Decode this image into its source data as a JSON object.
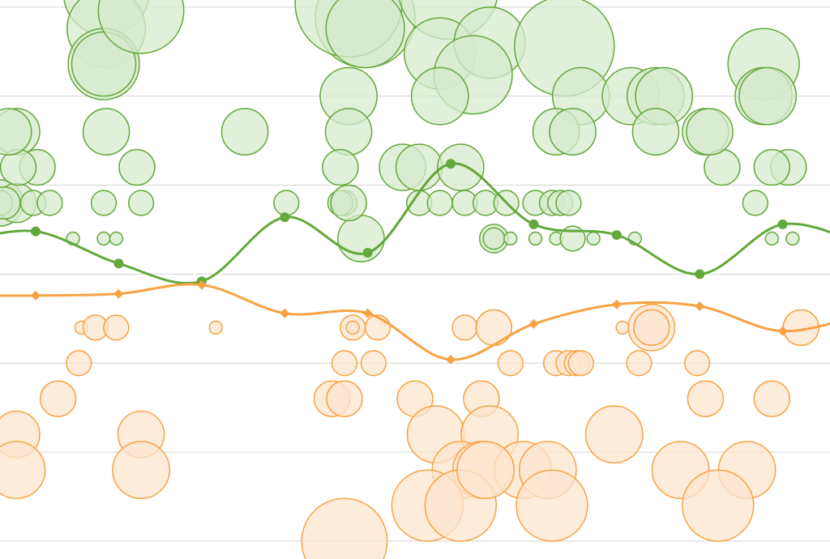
{
  "chart_data": {
    "type": "scatter",
    "title": "",
    "xlabel": "",
    "ylabel": "",
    "xlim": [
      0,
      10
    ],
    "ylim": [
      -14.5,
      1.2
    ],
    "grid": true,
    "grid_y": [
      1,
      -1.5,
      -4,
      -6.5,
      -9,
      -11.5,
      -14
    ],
    "series": [
      {
        "kind": "line",
        "color": "#63a83b",
        "marker": "circle",
        "x": [
          -0.5,
          0.43,
          1.43,
          2.43,
          3.43,
          4.43,
          5.43,
          6.43,
          7.43,
          8.43,
          9.43,
          10.43
        ],
        "y": [
          -5.6,
          -5.3,
          -6.2,
          -6.7,
          -4.9,
          -5.9,
          -3.4,
          -5.1,
          -5.4,
          -6.5,
          -5.1,
          -5.7
        ]
      },
      {
        "kind": "line",
        "color": "#f7a243",
        "marker": "diamond",
        "x": [
          -0.5,
          0.43,
          1.43,
          2.43,
          3.43,
          4.43,
          5.43,
          6.43,
          7.43,
          8.43,
          9.43,
          10.43
        ],
        "y": [
          -7.1,
          -7.1,
          -7.05,
          -6.8,
          -7.6,
          -7.6,
          -8.9,
          -7.9,
          -7.35,
          -7.4,
          -8.1,
          -7.6
        ]
      },
      {
        "kind": "bubbles",
        "color": "#63a83b",
        "fill": "#d6ebcc",
        "points": [
          [
            1.28,
            1.4,
            1.2
          ],
          [
            1.28,
            0.4,
            1.1
          ],
          [
            1.25,
            -0.6,
            1.0
          ],
          [
            1.25,
            -0.6,
            0.9
          ],
          [
            1.7,
            0.9,
            1.2
          ],
          [
            4.4,
            0.7,
            1.4
          ],
          [
            4.2,
            1.1,
            1.5
          ],
          [
            4.4,
            0.4,
            1.1
          ],
          [
            5.4,
            1.5,
            1.4
          ],
          [
            5.3,
            -0.3,
            1.0
          ],
          [
            5.9,
            0,
            1.0
          ],
          [
            5.7,
            -0.9,
            1.1
          ],
          [
            5.3,
            -1.5,
            0.8
          ],
          [
            6.8,
            -0.1,
            1.4
          ],
          [
            7.0,
            -1.5,
            0.8
          ],
          [
            6.7,
            -2.5,
            0.65
          ],
          [
            6.9,
            -2.5,
            0.65
          ],
          [
            4.2,
            -1.5,
            0.8
          ],
          [
            4.2,
            -2.5,
            0.65
          ],
          [
            7.6,
            -1.5,
            0.8
          ],
          [
            7.9,
            -1.5,
            0.8
          ],
          [
            8.0,
            -1.5,
            0.8
          ],
          [
            7.9,
            -2.5,
            0.65
          ],
          [
            8.5,
            -2.5,
            0.65
          ],
          [
            9.2,
            -0.6,
            1.0
          ],
          [
            9.2,
            -1.5,
            0.8
          ],
          [
            0.2,
            -2.5,
            0.65
          ],
          [
            1.28,
            -2.5,
            0.65
          ],
          [
            0.45,
            -3.5,
            0.5
          ],
          [
            1.65,
            -3.5,
            0.5
          ],
          [
            2.95,
            -2.5,
            0.65
          ],
          [
            4.1,
            -3.5,
            0.5
          ],
          [
            4.85,
            -3.5,
            0.65
          ],
          [
            5.05,
            -3.5,
            0.65
          ],
          [
            5.55,
            -3.5,
            0.65
          ],
          [
            4.15,
            -4.5,
            0.35
          ],
          [
            4.35,
            -5.5,
            0.65
          ],
          [
            5.05,
            -4.5,
            0.35
          ],
          [
            5.3,
            -4.5,
            0.35
          ],
          [
            5.6,
            -4.5,
            0.35
          ],
          [
            5.85,
            -4.5,
            0.35
          ],
          [
            6.1,
            -4.5,
            0.35
          ],
          [
            6.45,
            -4.5,
            0.35
          ],
          [
            6.65,
            -4.5,
            0.35
          ],
          [
            6.75,
            -4.5,
            0.35
          ],
          [
            6.85,
            -4.5,
            0.35
          ],
          [
            9.1,
            -4.5,
            0.35
          ],
          [
            0,
            -4.5,
            0.65
          ],
          [
            0.2,
            -4.5,
            0.55
          ],
          [
            0.4,
            -4.5,
            0.35
          ],
          [
            0.6,
            -4.5,
            0.35
          ],
          [
            0.22,
            -3.5,
            0.5
          ],
          [
            0.1,
            -2.5,
            0.65
          ],
          [
            0,
            -4.5,
            0.35
          ],
          [
            0.05,
            -4.5,
            0.45
          ],
          [
            1.25,
            -4.5,
            0.35
          ],
          [
            1.7,
            -4.5,
            0.35
          ],
          [
            3.45,
            -4.5,
            0.35
          ],
          [
            4.1,
            -4.5,
            0.35
          ],
          [
            4.2,
            -4.5,
            0.5
          ],
          [
            0.88,
            -5.5,
            0.18
          ],
          [
            1.25,
            -5.5,
            0.18
          ],
          [
            1.4,
            -5.5,
            0.18
          ],
          [
            5.95,
            -5.5,
            0.4
          ],
          [
            5.95,
            -5.5,
            0.3
          ],
          [
            6.15,
            -5.5,
            0.18
          ],
          [
            6.45,
            -5.5,
            0.18
          ],
          [
            6.7,
            -5.5,
            0.18
          ],
          [
            6.9,
            -5.5,
            0.35
          ],
          [
            7.15,
            -5.5,
            0.18
          ],
          [
            7.65,
            -5.5,
            0.18
          ],
          [
            9.3,
            -5.5,
            0.18
          ],
          [
            9.55,
            -5.5,
            0.18
          ],
          [
            9.5,
            -3.5,
            0.5
          ],
          [
            9.3,
            -3.5,
            0.5
          ],
          [
            8.7,
            -3.5,
            0.5
          ],
          [
            8.55,
            -2.5,
            0.65
          ],
          [
            9.25,
            -1.5,
            0.8
          ]
        ]
      },
      {
        "kind": "bubbles",
        "color": "#f7a243",
        "fill": "#fde5cf",
        "points": [
          [
            0.98,
            -8.0,
            0.18
          ],
          [
            1.15,
            -8.0,
            0.35
          ],
          [
            1.4,
            -8.0,
            0.35
          ],
          [
            2.6,
            -8.0,
            0.18
          ],
          [
            4.25,
            -8.0,
            0.35
          ],
          [
            4.25,
            -8.0,
            0.18
          ],
          [
            4.55,
            -8.0,
            0.35
          ],
          [
            5.6,
            -8.0,
            0.35
          ],
          [
            5.95,
            -8.0,
            0.5
          ],
          [
            7.5,
            -8.0,
            0.18
          ],
          [
            7.85,
            -8.0,
            0.65
          ],
          [
            7.85,
            -8.0,
            0.5
          ],
          [
            9.65,
            -8.0,
            0.5
          ],
          [
            0.95,
            -9.0,
            0.35
          ],
          [
            4.15,
            -9.0,
            0.35
          ],
          [
            4.5,
            -9.0,
            0.35
          ],
          [
            6.15,
            -9.0,
            0.35
          ],
          [
            6.7,
            -9.0,
            0.35
          ],
          [
            6.85,
            -9.0,
            0.35
          ],
          [
            6.95,
            -9.0,
            0.35
          ],
          [
            7.0,
            -9.0,
            0.35
          ],
          [
            7.7,
            -9.0,
            0.35
          ],
          [
            8.4,
            -9.0,
            0.35
          ],
          [
            0.7,
            -10.0,
            0.5
          ],
          [
            4.0,
            -10.0,
            0.5
          ],
          [
            4.15,
            -10.0,
            0.5
          ],
          [
            5.0,
            -10.0,
            0.5
          ],
          [
            5.8,
            -10.0,
            0.5
          ],
          [
            8.5,
            -10.0,
            0.5
          ],
          [
            9.3,
            -10.0,
            0.5
          ],
          [
            0.2,
            -11.0,
            0.65
          ],
          [
            1.7,
            -11.0,
            0.65
          ],
          [
            5.25,
            -11.0,
            0.8
          ],
          [
            5.9,
            -11.0,
            0.8
          ],
          [
            7.4,
            -11.0,
            0.8
          ],
          [
            0.2,
            -12.0,
            0.8
          ],
          [
            1.7,
            -12.0,
            0.8
          ],
          [
            5.55,
            -12.0,
            0.8
          ],
          [
            5.8,
            -12.0,
            0.8
          ],
          [
            6.3,
            -12.0,
            0.8
          ],
          [
            6.6,
            -12.0,
            0.8
          ],
          [
            8.2,
            -12.0,
            0.8
          ],
          [
            9.0,
            -12.0,
            0.8
          ],
          [
            5.15,
            -13.0,
            1.0
          ],
          [
            5.55,
            -13.0,
            1.0
          ],
          [
            6.65,
            -13.0,
            1.0
          ],
          [
            8.65,
            -13.0,
            1.0
          ],
          [
            4.15,
            -14.0,
            1.2
          ],
          [
            5.85,
            -12.0,
            0.8
          ]
        ]
      }
    ]
  }
}
